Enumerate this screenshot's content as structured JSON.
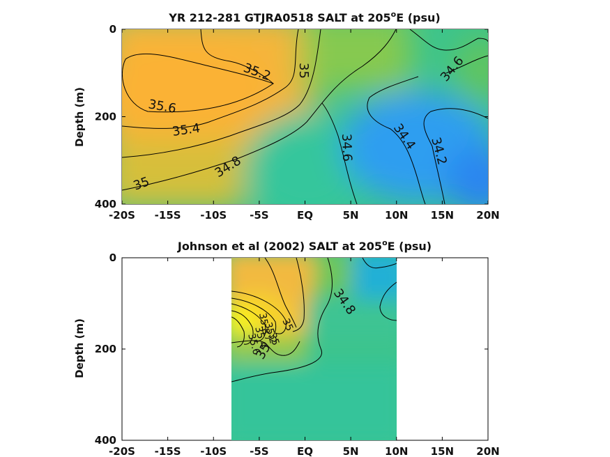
{
  "chart_data": [
    {
      "type": "contour",
      "title": "YR 212-281 GTJRA0518 SALT at 205",
      "title_superscript": "o",
      "title_suffix": "E (psu)",
      "ylabel": "Depth (m)",
      "xlabel": "",
      "xticks": [
        "-20S",
        "-15S",
        "-10S",
        "-5S",
        "EQ",
        "5N",
        "10N",
        "15N",
        "20N"
      ],
      "yticks": [
        "0",
        "200",
        "400"
      ],
      "xlim": [
        -20,
        20
      ],
      "ylim": [
        0,
        400
      ],
      "x_coverage": [
        -20,
        20
      ],
      "contour_labels": [
        "35.2",
        "35",
        "34.6",
        "35.6",
        "35.4",
        "34.6",
        "34.4",
        "34.2",
        "34.8",
        "35"
      ],
      "colors": {
        "high": "#f7b43a",
        "mid": "#4ec57c",
        "low": "#2f8df0"
      }
    },
    {
      "type": "contour",
      "title": "Johnson et al (2002) SALT at 205",
      "title_superscript": "o",
      "title_suffix": "E (psu)",
      "ylabel": "Depth (m)",
      "xlabel": "",
      "xticks": [
        "-20S",
        "-15S",
        "-10S",
        "-5S",
        "EQ",
        "5N",
        "10N",
        "15N",
        "20N"
      ],
      "yticks": [
        "0",
        "200",
        "400"
      ],
      "xlim": [
        -20,
        20
      ],
      "ylim": [
        0,
        400
      ],
      "x_coverage": [
        -8,
        10
      ],
      "contour_labels": [
        "34.8",
        "35",
        "35",
        "35.2",
        "35.4",
        "35.6",
        "35.8",
        "35"
      ],
      "colors": {
        "high": "#f7f01e",
        "mid": "#3cc48c",
        "low": "#1fb0d8"
      }
    }
  ]
}
